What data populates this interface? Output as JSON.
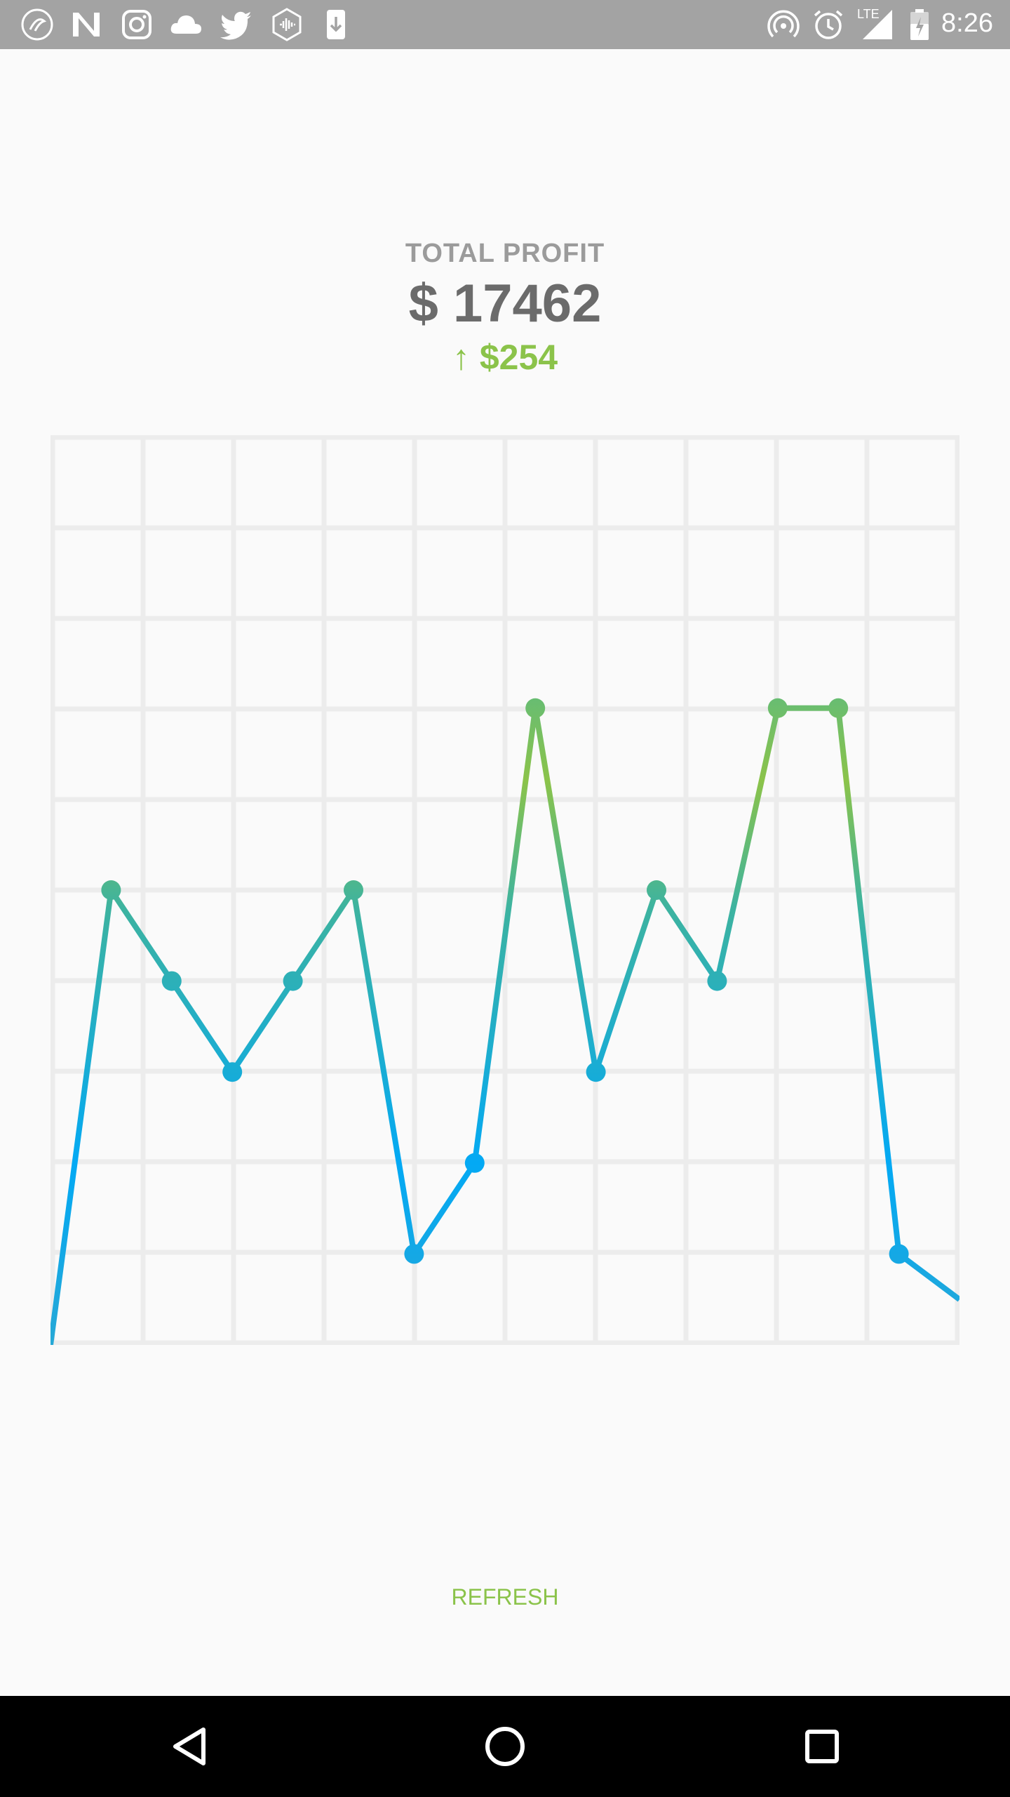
{
  "status_bar": {
    "time": "8:26",
    "network_label": "LTE",
    "left_icons": [
      "app-notification-icon",
      "n-app-icon",
      "instagram-icon",
      "cloud-icon",
      "twitter-icon",
      "hexagon-app-icon",
      "download-icon"
    ],
    "right_icons": [
      "hotspot-icon",
      "alarm-icon",
      "signal-icon",
      "battery-icon"
    ]
  },
  "header": {
    "title": "TOTAL PROFIT",
    "amount": "$ 17462",
    "delta": "↑ $254"
  },
  "colors": {
    "accent_green": "#8bc34a",
    "line_blue": "#03a9f4",
    "grid": "#ececec"
  },
  "chart_data": {
    "type": "line",
    "grid": true,
    "grid_divisions": 10,
    "x": [
      0,
      1,
      2,
      3,
      4,
      5,
      6,
      7,
      8,
      9,
      10,
      11,
      12,
      13,
      14,
      15
    ],
    "values": [
      0,
      5,
      4,
      3,
      4,
      5,
      1,
      2,
      7,
      3,
      5,
      4,
      7,
      7,
      1,
      0.5
    ],
    "ylim": [
      0,
      10
    ],
    "title": "",
    "xlabel": "",
    "ylabel": ""
  },
  "actions": {
    "refresh_label": "REFRESH"
  },
  "nav": {
    "buttons": [
      "back-button",
      "home-button",
      "recents-button"
    ]
  }
}
